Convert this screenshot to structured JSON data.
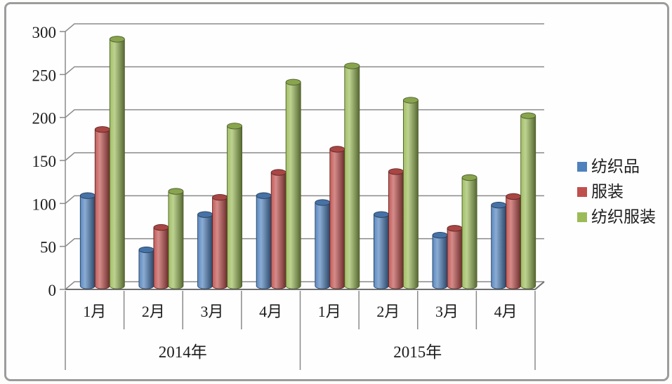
{
  "frame": {
    "background": "#fefefe",
    "border_color": "#9c9c9c",
    "gridline_color": "#8a8a8a"
  },
  "chart_data": {
    "type": "bar",
    "style": "3d-cylinder",
    "title": "",
    "categories": [
      "1月",
      "2月",
      "3月",
      "4月",
      "1月",
      "2月",
      "3月",
      "4月"
    ],
    "category_groups": [
      {
        "label": "2014年",
        "from": 0,
        "to": 3
      },
      {
        "label": "2015年",
        "from": 4,
        "to": 7
      }
    ],
    "series": [
      {
        "name": "纺织品",
        "color": "#4F81BD",
        "values": [
          105,
          42,
          83,
          105,
          97,
          83,
          59,
          94
        ]
      },
      {
        "name": "服装",
        "color": "#C0504D",
        "values": [
          182,
          68,
          103,
          132,
          159,
          133,
          67,
          104
        ]
      },
      {
        "name": "纺织服装",
        "color": "#9BBB59",
        "values": [
          287,
          110,
          186,
          237,
          256,
          216,
          126,
          198
        ]
      }
    ],
    "y_axis": {
      "min": 0,
      "max": 300,
      "step": 50,
      "tick_labels": [
        "0",
        "50",
        "100",
        "150",
        "200",
        "250",
        "300"
      ]
    },
    "grid": true,
    "legend_position": "right"
  }
}
